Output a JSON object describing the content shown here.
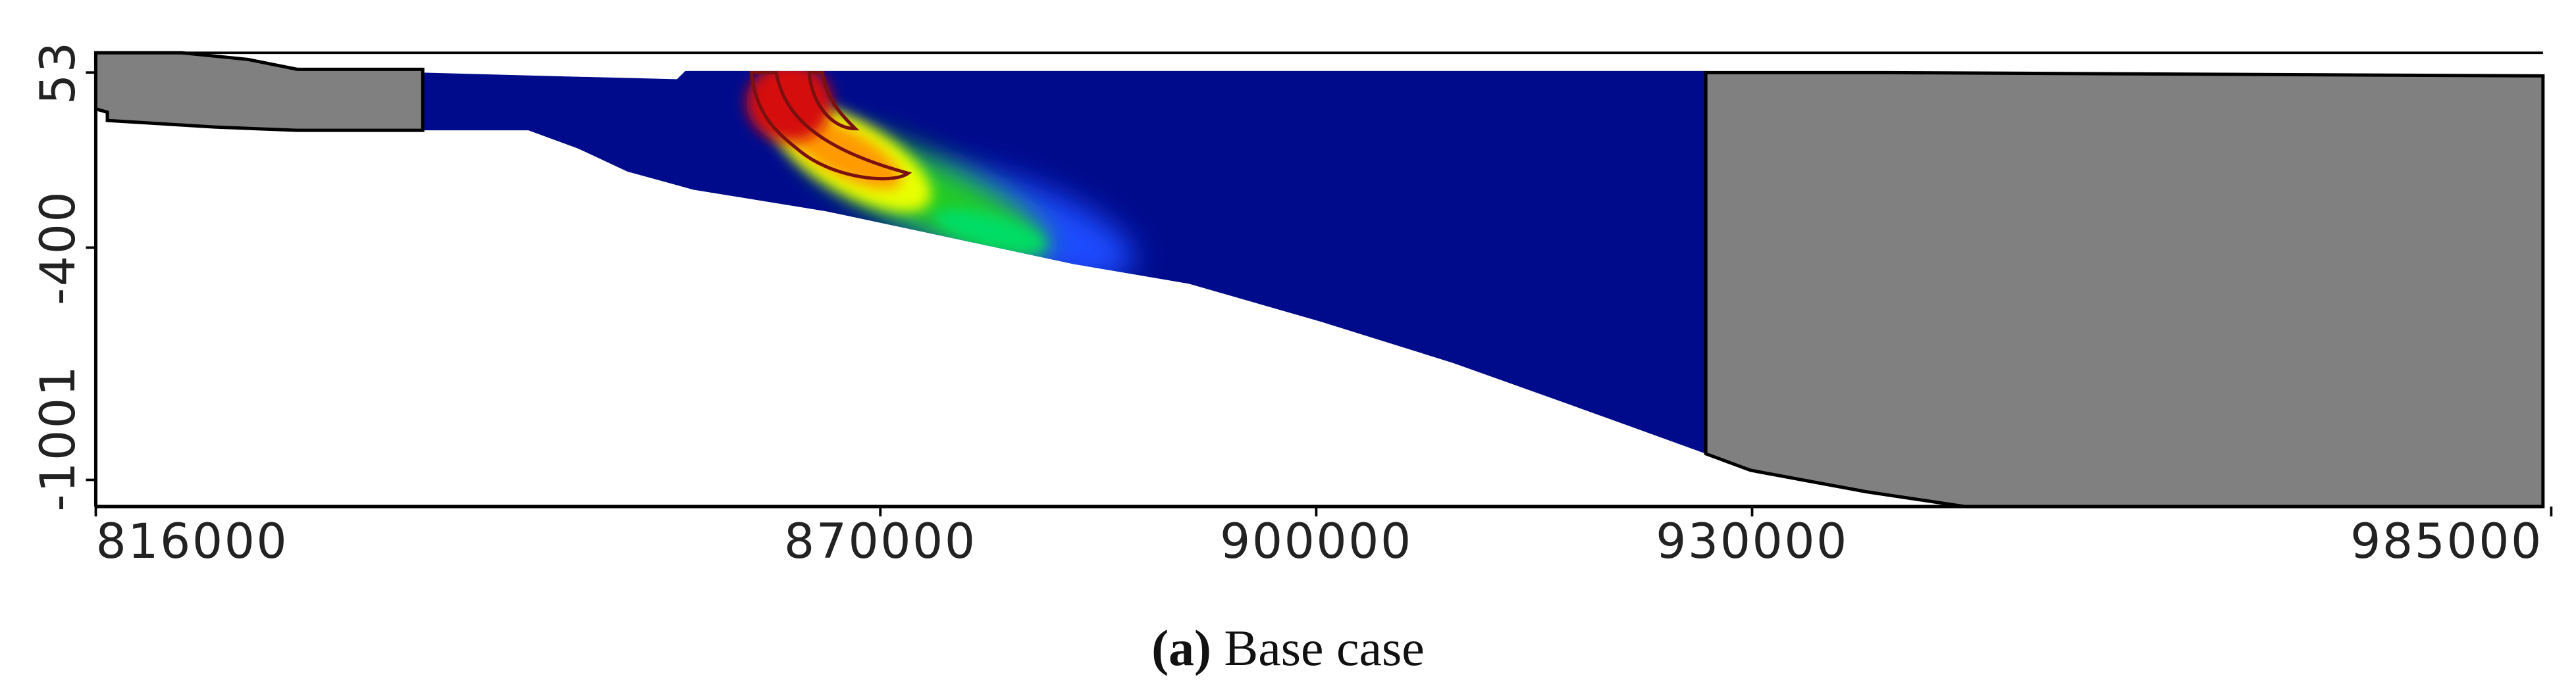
{
  "chart_data": {
    "type": "section",
    "caption_label": "(a)",
    "caption_text": "Base case",
    "xlim": [
      816000,
      985000
    ],
    "xticks": [
      816000,
      870000,
      900000,
      930000,
      985000
    ],
    "ylim": [
      -1070,
      104
    ],
    "yticks": [
      53,
      -400,
      -1001
    ]
  }
}
